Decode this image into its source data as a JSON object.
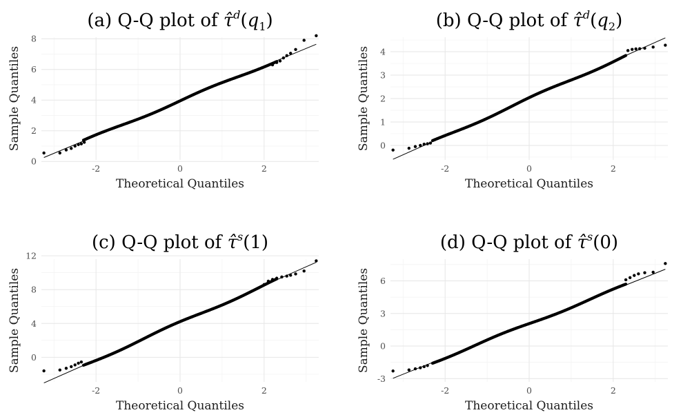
{
  "chart_data": [
    {
      "type": "scatter",
      "panel_label": "(a)",
      "title_prefix": "Q-Q plot of",
      "title_symbol": "τ̂",
      "title_sup": "d",
      "title_arg": "q",
      "title_arg_sub": "1",
      "xlabel": "Theoretical Quantiles",
      "ylabel": "Sample Quantiles",
      "xlim": [
        -3.3,
        3.3
      ],
      "ylim": [
        0.1,
        8.1
      ],
      "xticks": [
        -2,
        0,
        2
      ],
      "yticks": [
        0,
        2,
        4,
        6,
        8
      ],
      "grid": true,
      "reference_line": {
        "intercept": 3.95,
        "slope": 1.14
      },
      "points": [
        [
          -3.24,
          0.55
        ],
        [
          -2.86,
          0.55
        ],
        [
          -2.71,
          0.75
        ],
        [
          -2.59,
          0.85
        ],
        [
          -2.5,
          1.0
        ],
        [
          -2.42,
          1.1
        ],
        [
          -2.35,
          1.15
        ],
        [
          -2.28,
          1.25
        ],
        [
          2.2,
          6.3
        ],
        [
          2.3,
          6.45
        ],
        [
          2.38,
          6.55
        ],
        [
          2.46,
          6.75
        ],
        [
          2.54,
          6.9
        ],
        [
          2.63,
          7.05
        ],
        [
          2.75,
          7.3
        ],
        [
          2.95,
          7.9
        ],
        [
          3.24,
          8.2
        ]
      ]
    },
    {
      "type": "scatter",
      "panel_label": "(b)",
      "title_prefix": "Q-Q plot of",
      "title_symbol": "τ̂",
      "title_sup": "d",
      "title_arg": "q",
      "title_arg_sub": "2",
      "xlabel": "Theoretical Quantiles",
      "ylabel": "Sample Quantiles",
      "xlim": [
        -3.3,
        3.3
      ],
      "ylim": [
        -0.62,
        4.62
      ],
      "xticks": [
        -2,
        0,
        2
      ],
      "yticks": [
        0,
        1,
        2,
        3,
        4
      ],
      "grid": true,
      "reference_line": {
        "intercept": 2.0,
        "slope": 0.8
      },
      "points": [
        [
          -3.24,
          -0.2
        ],
        [
          -2.86,
          -0.12
        ],
        [
          -2.71,
          -0.05
        ],
        [
          -2.59,
          0.0
        ],
        [
          -2.5,
          0.05
        ],
        [
          -2.42,
          0.07
        ],
        [
          -2.35,
          0.1
        ],
        [
          2.35,
          4.05
        ],
        [
          2.45,
          4.1
        ],
        [
          2.54,
          4.12
        ],
        [
          2.63,
          4.13
        ],
        [
          2.75,
          4.15
        ],
        [
          2.95,
          4.2
        ],
        [
          3.24,
          4.28
        ]
      ]
    },
    {
      "type": "scatter",
      "panel_label": "(c)",
      "title_prefix": "Q-Q plot of",
      "title_symbol": "τ̂",
      "title_sup": "s",
      "title_arg": "1",
      "title_arg_sub": "",
      "xlabel": "Theoretical Quantiles",
      "ylabel": "Sample Quantiles",
      "xlim": [
        -3.3,
        3.3
      ],
      "ylim": [
        -2.9,
        11.6
      ],
      "xticks": [
        -2,
        0,
        2
      ],
      "yticks": [
        0,
        4,
        8,
        12
      ],
      "grid": true,
      "reference_line": {
        "intercept": 4.1,
        "slope": 2.2
      },
      "points": [
        [
          -3.24,
          -1.6
        ],
        [
          -2.86,
          -1.5
        ],
        [
          -2.71,
          -1.3
        ],
        [
          -2.59,
          -1.1
        ],
        [
          -2.5,
          -0.9
        ],
        [
          -2.42,
          -0.7
        ],
        [
          -2.35,
          -0.55
        ],
        [
          2.0,
          8.6
        ],
        [
          2.1,
          9.0
        ],
        [
          2.2,
          9.2
        ],
        [
          2.3,
          9.35
        ],
        [
          2.42,
          9.5
        ],
        [
          2.54,
          9.6
        ],
        [
          2.63,
          9.7
        ],
        [
          2.75,
          9.85
        ],
        [
          2.95,
          10.2
        ],
        [
          3.24,
          11.4
        ]
      ]
    },
    {
      "type": "scatter",
      "panel_label": "(d)",
      "title_prefix": "Q-Q plot of",
      "title_symbol": "τ̂",
      "title_sup": "s",
      "title_arg": "0",
      "title_arg_sub": "",
      "xlabel": "Theoretical Quantiles",
      "ylabel": "Sample Quantiles",
      "xlim": [
        -3.3,
        3.3
      ],
      "ylim": [
        -3.3,
        8.0
      ],
      "xticks": [
        -2,
        0,
        2
      ],
      "yticks": [
        -3,
        0,
        3,
        6
      ],
      "grid": true,
      "reference_line": {
        "intercept": 2.05,
        "slope": 1.55
      },
      "points": [
        [
          -3.24,
          -2.3
        ],
        [
          -2.86,
          -2.2
        ],
        [
          -2.71,
          -2.1
        ],
        [
          -2.59,
          -2.0
        ],
        [
          -2.5,
          -1.9
        ],
        [
          -2.42,
          -1.8
        ],
        [
          2.3,
          6.1
        ],
        [
          2.4,
          6.3
        ],
        [
          2.5,
          6.5
        ],
        [
          2.6,
          6.65
        ],
        [
          2.75,
          6.75
        ],
        [
          2.95,
          6.8
        ],
        [
          3.24,
          7.6
        ]
      ]
    }
  ]
}
